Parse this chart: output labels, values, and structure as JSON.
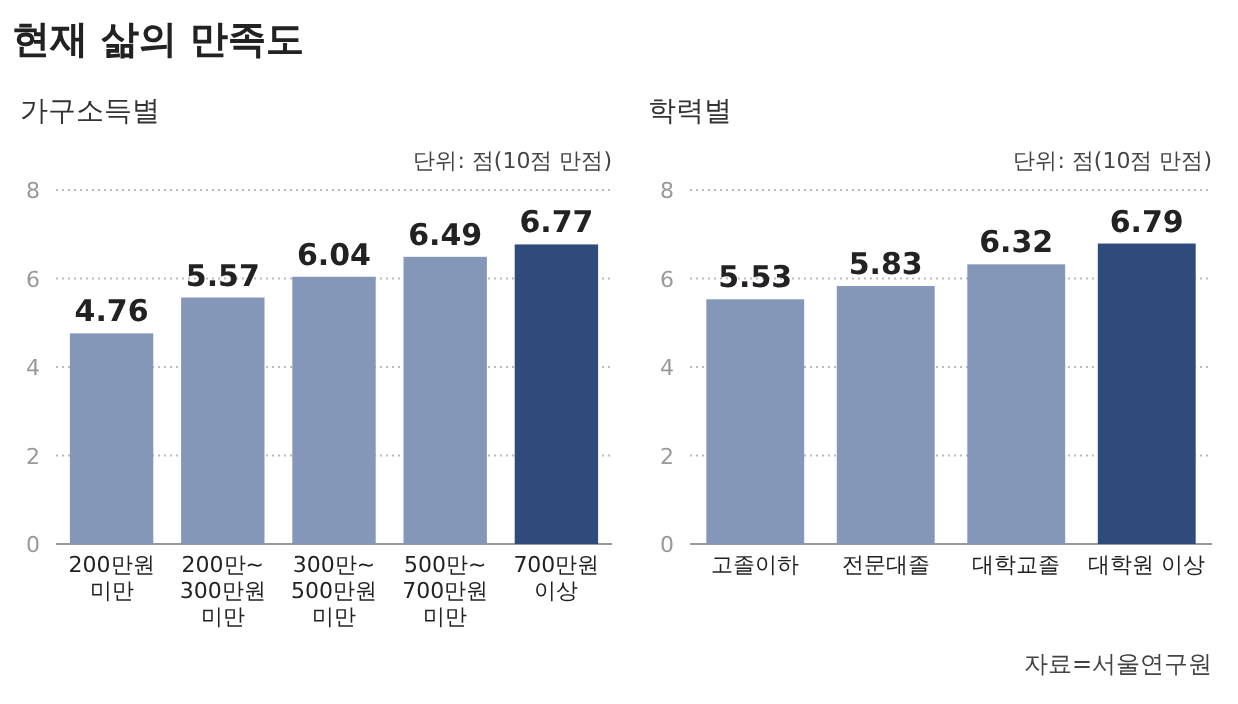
{
  "chart_data": [
    {
      "type": "bar",
      "title": "현재 삶의 만족도",
      "subtitle": "가구소득별",
      "annotations": [
        "단위: 점(10점 만점)"
      ],
      "categories": [
        "200만원\n미만",
        "200만~\n300만원\n미만",
        "300만~\n500만원\n미만",
        "500만~\n700만원\n미만",
        "700만원\n이상"
      ],
      "values": [
        4.76,
        5.57,
        6.04,
        6.49,
        6.77
      ],
      "colors": [
        "#8497b8",
        "#8497b8",
        "#8497b8",
        "#8497b8",
        "#2f4b7c"
      ],
      "ylim": [
        0,
        8
      ],
      "yticks": [
        0,
        2,
        4,
        6,
        8
      ],
      "grid": "y",
      "data_labels": true
    },
    {
      "type": "bar",
      "subtitle": "학력별",
      "annotations": [
        "단위: 점(10점 만점)",
        "자료=서울연구원"
      ],
      "categories": [
        "고졸이하",
        "전문대졸",
        "대학교졸",
        "대학원 이상"
      ],
      "values": [
        5.53,
        5.83,
        6.32,
        6.79
      ],
      "colors": [
        "#8497b8",
        "#8497b8",
        "#8497b8",
        "#2f4b7c"
      ],
      "ylim": [
        0,
        8
      ],
      "yticks": [
        0,
        2,
        4,
        6,
        8
      ],
      "grid": "y",
      "data_labels": true
    }
  ]
}
